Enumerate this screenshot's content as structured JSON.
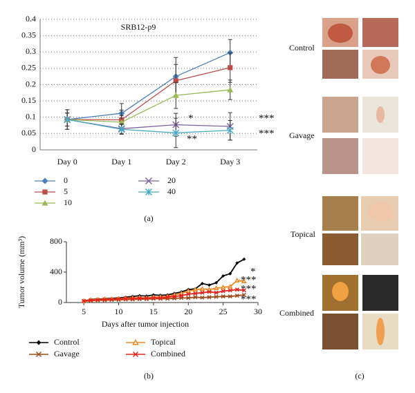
{
  "chart_data": [
    {
      "type": "line",
      "title": "SRB12-p9",
      "panel_label": "(a)",
      "categories": [
        "Day 0",
        "Day 1",
        "Day 2",
        "Day 3"
      ],
      "ylim": [
        0,
        0.4
      ],
      "yticks": [
        0,
        0.05,
        0.1,
        0.15,
        0.2,
        0.25,
        0.3,
        0.35,
        0.4
      ],
      "grid": true,
      "series": [
        {
          "name": "0",
          "color": "#4a7ebb",
          "marker": "diamond",
          "values": [
            0.093,
            0.112,
            0.225,
            0.298
          ],
          "errors": [
            0.03,
            0.03,
            0.058,
            0.04
          ]
        },
        {
          "name": "5",
          "color": "#be4b48",
          "marker": "square",
          "values": [
            0.093,
            0.092,
            0.212,
            0.252
          ],
          "errors": [
            0.03,
            0.03,
            0.05,
            0.045
          ]
        },
        {
          "name": "10",
          "color": "#98b954",
          "marker": "triangle",
          "values": [
            0.093,
            0.085,
            0.167,
            0.184
          ],
          "errors": [
            0.02,
            0.02,
            0.04,
            0.03
          ]
        },
        {
          "name": "20",
          "color": "#7d60a0",
          "marker": "x",
          "values": [
            0.093,
            0.065,
            0.077,
            0.072
          ],
          "errors": [
            0.02,
            0.015,
            0.035,
            0.042
          ]
        },
        {
          "name": "40",
          "color": "#46aac5",
          "marker": "asterisk",
          "values": [
            0.093,
            0.063,
            0.052,
            0.06
          ],
          "errors": [
            0.02,
            0.015,
            0.045,
            0.03
          ]
        }
      ],
      "annotations": [
        "*",
        "**",
        "***",
        "***"
      ]
    },
    {
      "type": "line",
      "panel_label": "(b)",
      "y_label": "Tumor volume (mm³)",
      "x_label": "Days after tumor injection",
      "x": [
        5,
        6,
        7,
        8,
        9,
        10,
        11,
        12,
        13,
        14,
        15,
        16,
        17,
        18,
        19,
        20,
        21,
        22,
        23,
        24,
        25,
        26,
        27,
        28
      ],
      "xlim": [
        2.5,
        30
      ],
      "xticks": [
        5,
        10,
        15,
        20,
        25,
        30
      ],
      "ylim": [
        0,
        800
      ],
      "yticks": [
        0,
        400,
        800
      ],
      "grid": false,
      "series": [
        {
          "name": "Control",
          "color": "#000000",
          "marker": "diamond",
          "values": [
            20,
            40,
            45,
            50,
            55,
            60,
            70,
            80,
            90,
            85,
            100,
            95,
            100,
            120,
            140,
            170,
            180,
            250,
            230,
            260,
            350,
            380,
            520,
            570
          ]
        },
        {
          "name": "Gavage",
          "color": "#9a4a1a",
          "marker": "x",
          "values": [
            15,
            25,
            30,
            30,
            35,
            35,
            40,
            40,
            45,
            45,
            50,
            50,
            50,
            55,
            60,
            60,
            70,
            65,
            70,
            75,
            80,
            80,
            90,
            100
          ]
        },
        {
          "name": "Topical",
          "color": "#f0861e",
          "marker": "triangle-open",
          "values": [
            20,
            35,
            40,
            45,
            45,
            50,
            55,
            60,
            65,
            60,
            70,
            75,
            80,
            100,
            120,
            150,
            170,
            180,
            170,
            190,
            200,
            210,
            290,
            280
          ]
        },
        {
          "name": "Combined",
          "color": "#e3201b",
          "marker": "x",
          "values": [
            20,
            30,
            35,
            40,
            40,
            45,
            50,
            50,
            55,
            55,
            60,
            60,
            70,
            80,
            90,
            110,
            120,
            130,
            140,
            130,
            150,
            160,
            170,
            160
          ]
        }
      ],
      "annotations": [
        "*",
        "***",
        "***",
        "***"
      ]
    }
  ],
  "photos": {
    "labels": [
      "Control",
      "Gavage",
      "Topical",
      "Combined"
    ],
    "panel_label": "(c)"
  }
}
